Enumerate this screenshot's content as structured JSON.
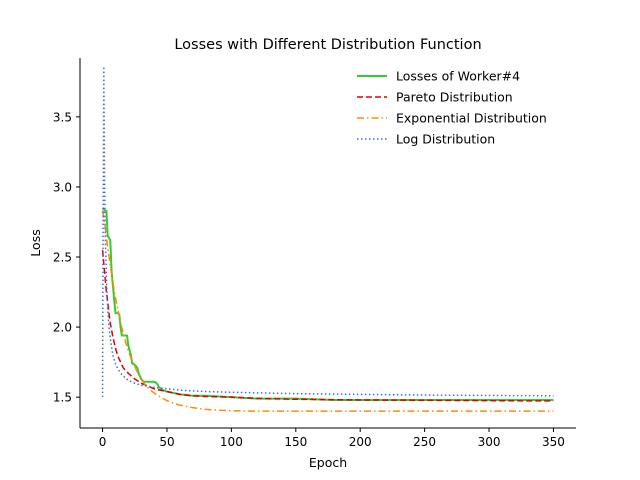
{
  "chart_data": {
    "type": "line",
    "title": "Losses with Different Distribution Function",
    "xlabel": "Epoch",
    "ylabel": "Loss",
    "xlim": [
      -17.5,
      367.5
    ],
    "ylim": [
      1.28,
      3.92
    ],
    "x_ticks": [
      0,
      50,
      100,
      150,
      200,
      250,
      300,
      350
    ],
    "y_ticks": [
      1.5,
      2.0,
      2.5,
      3.0,
      3.5
    ],
    "grid": false,
    "legend_position": "top-right",
    "spines": "left-bottom",
    "series": [
      {
        "name": "Losses of Worker#4",
        "color": "#33cc33",
        "style": "solid",
        "points": [
          [
            0,
            2.85
          ],
          [
            2,
            2.83
          ],
          [
            3,
            2.83
          ],
          [
            4,
            2.65
          ],
          [
            6,
            2.62
          ],
          [
            7,
            2.4
          ],
          [
            8,
            2.3
          ],
          [
            9,
            2.2
          ],
          [
            10,
            2.1
          ],
          [
            12,
            2.1
          ],
          [
            13,
            2.09
          ],
          [
            14,
            2.0
          ],
          [
            15,
            1.94
          ],
          [
            19,
            1.94
          ],
          [
            20,
            1.87
          ],
          [
            22,
            1.8
          ],
          [
            23,
            1.74
          ],
          [
            25,
            1.73
          ],
          [
            27,
            1.71
          ],
          [
            28,
            1.67
          ],
          [
            30,
            1.63
          ],
          [
            32,
            1.61
          ],
          [
            35,
            1.61
          ],
          [
            40,
            1.61
          ],
          [
            42,
            1.6
          ],
          [
            44,
            1.57
          ],
          [
            47,
            1.55
          ],
          [
            50,
            1.54
          ],
          [
            55,
            1.53
          ],
          [
            60,
            1.52
          ],
          [
            70,
            1.51
          ],
          [
            80,
            1.51
          ],
          [
            100,
            1.5
          ],
          [
            120,
            1.49
          ],
          [
            150,
            1.49
          ],
          [
            180,
            1.48
          ],
          [
            200,
            1.48
          ],
          [
            220,
            1.48
          ],
          [
            230,
            1.48
          ],
          [
            260,
            1.48
          ],
          [
            300,
            1.48
          ],
          [
            350,
            1.48
          ]
        ]
      },
      {
        "name": "Pareto Distribution",
        "color": "#dd0000",
        "style": "dashed",
        "points": [
          [
            0,
            2.55
          ],
          [
            1,
            2.45
          ],
          [
            2,
            2.35
          ],
          [
            3,
            2.25
          ],
          [
            4,
            2.18
          ],
          [
            5,
            2.1
          ],
          [
            6,
            2.03
          ],
          [
            8,
            1.93
          ],
          [
            10,
            1.85
          ],
          [
            12,
            1.79
          ],
          [
            14,
            1.75
          ],
          [
            16,
            1.71
          ],
          [
            18,
            1.69
          ],
          [
            20,
            1.67
          ],
          [
            25,
            1.63
          ],
          [
            30,
            1.6
          ],
          [
            35,
            1.58
          ],
          [
            40,
            1.56
          ],
          [
            50,
            1.54
          ],
          [
            60,
            1.52
          ],
          [
            70,
            1.51
          ],
          [
            80,
            1.505
          ],
          [
            100,
            1.5
          ],
          [
            125,
            1.49
          ],
          [
            150,
            1.485
          ],
          [
            200,
            1.48
          ],
          [
            250,
            1.478
          ],
          [
            300,
            1.475
          ],
          [
            350,
            1.473
          ]
        ]
      },
      {
        "name": "Exponential Distribution",
        "color": "#ff8c00",
        "style": "dashdot",
        "points": [
          [
            0,
            2.83
          ],
          [
            2,
            2.72
          ],
          [
            4,
            2.57
          ],
          [
            6,
            2.44
          ],
          [
            8,
            2.32
          ],
          [
            10,
            2.21
          ],
          [
            12,
            2.12
          ],
          [
            14,
            2.03
          ],
          [
            16,
            1.96
          ],
          [
            18,
            1.89
          ],
          [
            20,
            1.83
          ],
          [
            22,
            1.78
          ],
          [
            24,
            1.74
          ],
          [
            26,
            1.7
          ],
          [
            28,
            1.66
          ],
          [
            30,
            1.63
          ],
          [
            33,
            1.59
          ],
          [
            36,
            1.56
          ],
          [
            40,
            1.53
          ],
          [
            45,
            1.5
          ],
          [
            50,
            1.475
          ],
          [
            55,
            1.457
          ],
          [
            60,
            1.443
          ],
          [
            70,
            1.425
          ],
          [
            80,
            1.413
          ],
          [
            90,
            1.407
          ],
          [
            100,
            1.403
          ],
          [
            120,
            1.4
          ],
          [
            150,
            1.4
          ],
          [
            200,
            1.4
          ],
          [
            250,
            1.4
          ],
          [
            300,
            1.4
          ],
          [
            350,
            1.4
          ]
        ]
      },
      {
        "name": "Log Distribution",
        "color": "#4169e1",
        "style": "dotted",
        "points": [
          [
            0,
            1.5
          ],
          [
            0.1,
            1.7
          ],
          [
            0.2,
            2.1
          ],
          [
            0.4,
            2.6
          ],
          [
            0.6,
            3.0
          ],
          [
            0.8,
            3.4
          ],
          [
            1.0,
            3.86
          ],
          [
            1.4,
            3.2
          ],
          [
            2,
            2.7
          ],
          [
            3,
            2.35
          ],
          [
            4,
            2.13
          ],
          [
            5,
            2.0
          ],
          [
            6,
            1.92
          ],
          [
            8,
            1.8
          ],
          [
            10,
            1.74
          ],
          [
            12,
            1.7
          ],
          [
            15,
            1.66
          ],
          [
            20,
            1.62
          ],
          [
            25,
            1.6
          ],
          [
            30,
            1.585
          ],
          [
            40,
            1.57
          ],
          [
            50,
            1.56
          ],
          [
            60,
            1.55
          ],
          [
            80,
            1.54
          ],
          [
            100,
            1.535
          ],
          [
            150,
            1.525
          ],
          [
            200,
            1.52
          ],
          [
            250,
            1.515
          ],
          [
            300,
            1.512
          ],
          [
            350,
            1.51
          ]
        ]
      }
    ]
  }
}
